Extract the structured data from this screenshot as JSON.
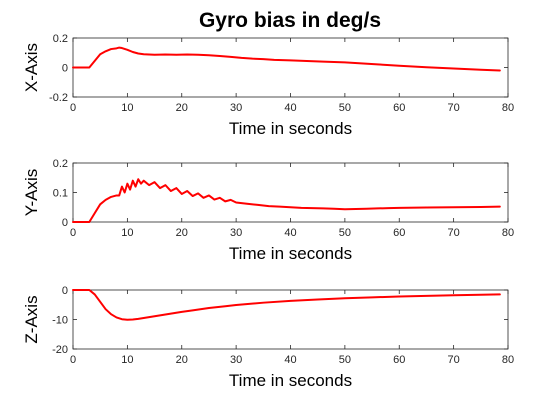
{
  "title": "Gyro bias in deg/s",
  "chart_data": [
    {
      "type": "line",
      "title": "Gyro bias in deg/s",
      "xlabel": "Time in seconds",
      "ylabel": "X-Axis",
      "xlim": [
        0,
        80
      ],
      "ylim": [
        -0.2,
        0.2
      ],
      "xticks": [
        0,
        10,
        20,
        30,
        40,
        50,
        60,
        70,
        80
      ],
      "yticks": [
        -0.2,
        0,
        0.2
      ],
      "grid": false,
      "legend": "none",
      "series": [
        {
          "color": "#ff0000",
          "x": [
            0,
            3,
            4,
            5,
            6,
            7,
            8,
            8.5,
            9,
            10,
            11,
            12,
            13,
            14,
            15,
            17,
            19,
            21,
            23,
            25,
            27,
            29,
            31,
            33,
            35,
            37,
            40,
            43,
            46,
            50,
            53,
            56,
            60,
            65,
            70,
            75,
            78.5
          ],
          "y": [
            0,
            0,
            0.045,
            0.09,
            0.11,
            0.125,
            0.13,
            0.135,
            0.132,
            0.12,
            0.105,
            0.095,
            0.09,
            0.088,
            0.086,
            0.088,
            0.086,
            0.088,
            0.086,
            0.083,
            0.078,
            0.072,
            0.065,
            0.06,
            0.057,
            0.052,
            0.048,
            0.044,
            0.04,
            0.035,
            0.028,
            0.021,
            0.012,
            0.002,
            -0.007,
            -0.015,
            -0.02
          ]
        }
      ]
    },
    {
      "type": "line",
      "xlabel": "Time in seconds",
      "ylabel": "Y-Axis",
      "xlim": [
        0,
        80
      ],
      "ylim": [
        0,
        0.2
      ],
      "xticks": [
        0,
        10,
        20,
        30,
        40,
        50,
        60,
        70,
        80
      ],
      "yticks": [
        0,
        0.1,
        0.2
      ],
      "grid": false,
      "legend": "none",
      "series": [
        {
          "color": "#ff0000",
          "x": [
            0,
            3,
            4,
            5,
            6,
            7,
            8,
            8.5,
            9,
            9.5,
            10,
            10.5,
            11,
            11.5,
            12,
            12.5,
            13,
            14,
            15,
            16,
            17,
            18,
            19,
            20,
            21,
            22,
            23,
            24,
            25,
            26,
            27,
            28,
            29,
            30,
            32,
            34,
            36,
            38,
            40,
            42,
            44,
            46,
            48,
            50,
            52,
            54,
            56,
            58,
            60,
            65,
            70,
            75,
            78.5
          ],
          "y": [
            0,
            0,
            0.03,
            0.06,
            0.075,
            0.085,
            0.09,
            0.09,
            0.12,
            0.1,
            0.13,
            0.11,
            0.14,
            0.12,
            0.145,
            0.13,
            0.14,
            0.125,
            0.135,
            0.115,
            0.125,
            0.105,
            0.115,
            0.095,
            0.105,
            0.088,
            0.097,
            0.082,
            0.09,
            0.076,
            0.082,
            0.07,
            0.075,
            0.066,
            0.062,
            0.058,
            0.054,
            0.052,
            0.05,
            0.048,
            0.047,
            0.046,
            0.045,
            0.043,
            0.044,
            0.045,
            0.046,
            0.047,
            0.048,
            0.049,
            0.05,
            0.051,
            0.052
          ]
        }
      ]
    },
    {
      "type": "line",
      "xlabel": "Time in seconds",
      "ylabel": "Z-Axis",
      "xlim": [
        0,
        80
      ],
      "ylim": [
        -20,
        0
      ],
      "xticks": [
        0,
        10,
        20,
        30,
        40,
        50,
        60,
        70,
        80
      ],
      "yticks": [
        -20,
        -10,
        0
      ],
      "grid": false,
      "legend": "none",
      "series": [
        {
          "color": "#ff0000",
          "x": [
            0,
            3,
            4,
            5,
            6,
            7,
            8,
            9,
            10,
            11,
            12,
            14,
            16,
            18,
            20,
            22,
            25,
            28,
            30,
            35,
            40,
            45,
            50,
            55,
            60,
            65,
            70,
            75,
            78.5
          ],
          "y": [
            0,
            0,
            -1.5,
            -4,
            -6.5,
            -8.2,
            -9.3,
            -9.9,
            -10.1,
            -10,
            -9.8,
            -9.2,
            -8.6,
            -8,
            -7.4,
            -6.9,
            -6.1,
            -5.5,
            -5.1,
            -4.3,
            -3.7,
            -3.2,
            -2.8,
            -2.5,
            -2.2,
            -2,
            -1.8,
            -1.6,
            -1.5
          ]
        }
      ]
    }
  ]
}
